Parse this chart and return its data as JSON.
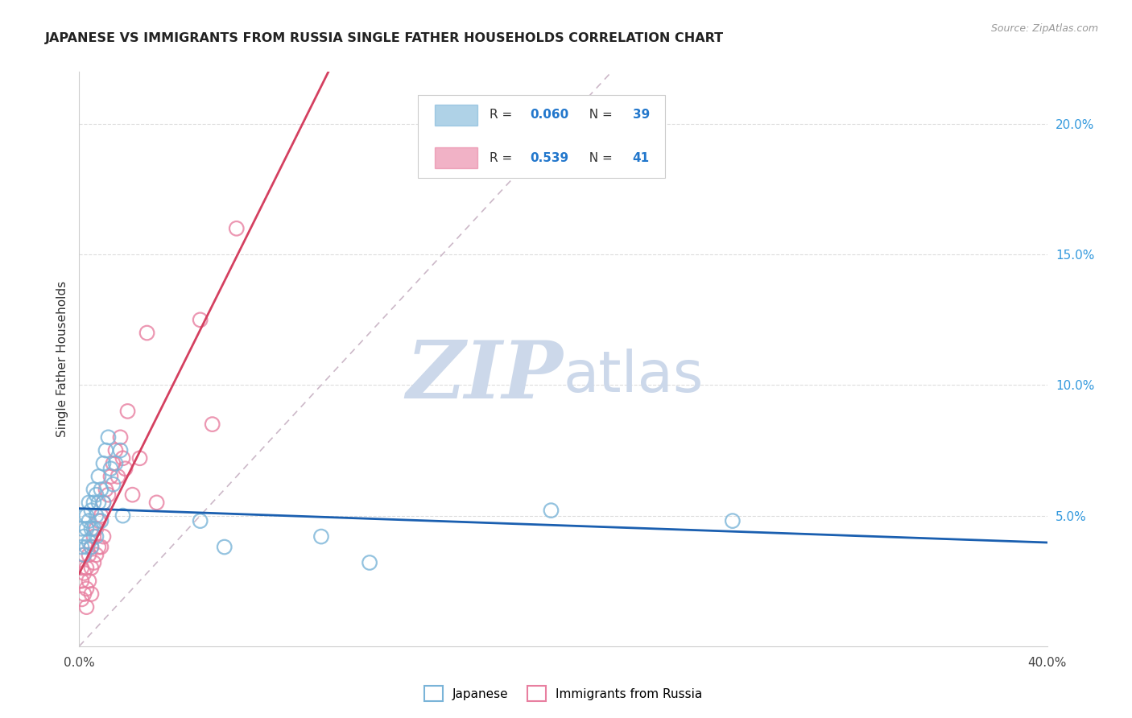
{
  "title": "JAPANESE VS IMMIGRANTS FROM RUSSIA SINGLE FATHER HOUSEHOLDS CORRELATION CHART",
  "source": "Source: ZipAtlas.com",
  "ylabel": "Single Father Households",
  "xlim": [
    0.0,
    0.4
  ],
  "ylim": [
    0.0,
    0.22
  ],
  "r_japanese": 0.06,
  "n_japanese": 39,
  "r_russia": 0.539,
  "n_russia": 41,
  "scatter_color_japanese": "#7ab4d8",
  "scatter_color_russia": "#e87fa0",
  "line_color_japanese": "#1a5fb0",
  "line_color_russia": "#d44060",
  "diagonal_color": "#cccccc",
  "background_color": "#ffffff",
  "watermark_color": "#ccd8ea",
  "japanese_x": [
    0.001,
    0.001,
    0.002,
    0.002,
    0.002,
    0.003,
    0.003,
    0.003,
    0.004,
    0.004,
    0.004,
    0.005,
    0.005,
    0.005,
    0.006,
    0.006,
    0.006,
    0.007,
    0.007,
    0.007,
    0.008,
    0.008,
    0.009,
    0.009,
    0.01,
    0.01,
    0.011,
    0.012,
    0.013,
    0.014,
    0.015,
    0.017,
    0.018,
    0.05,
    0.06,
    0.1,
    0.12,
    0.195,
    0.27
  ],
  "japanese_y": [
    0.045,
    0.038,
    0.05,
    0.042,
    0.035,
    0.05,
    0.045,
    0.038,
    0.055,
    0.048,
    0.04,
    0.052,
    0.045,
    0.038,
    0.06,
    0.055,
    0.045,
    0.058,
    0.05,
    0.042,
    0.065,
    0.055,
    0.06,
    0.048,
    0.07,
    0.055,
    0.075,
    0.08,
    0.068,
    0.062,
    0.07,
    0.075,
    0.05,
    0.048,
    0.038,
    0.042,
    0.032,
    0.052,
    0.048
  ],
  "russia_x": [
    0.001,
    0.001,
    0.001,
    0.002,
    0.002,
    0.002,
    0.003,
    0.003,
    0.003,
    0.004,
    0.004,
    0.005,
    0.005,
    0.005,
    0.006,
    0.006,
    0.007,
    0.007,
    0.008,
    0.008,
    0.009,
    0.009,
    0.01,
    0.01,
    0.011,
    0.012,
    0.013,
    0.014,
    0.015,
    0.016,
    0.017,
    0.018,
    0.019,
    0.02,
    0.022,
    0.025,
    0.028,
    0.032,
    0.05,
    0.055,
    0.065
  ],
  "russia_y": [
    0.03,
    0.025,
    0.018,
    0.035,
    0.028,
    0.02,
    0.03,
    0.022,
    0.015,
    0.035,
    0.025,
    0.038,
    0.03,
    0.02,
    0.042,
    0.032,
    0.045,
    0.035,
    0.048,
    0.038,
    0.05,
    0.038,
    0.055,
    0.042,
    0.06,
    0.058,
    0.065,
    0.07,
    0.075,
    0.065,
    0.08,
    0.072,
    0.068,
    0.09,
    0.058,
    0.072,
    0.12,
    0.055,
    0.125,
    0.085,
    0.16
  ],
  "diag_line_color": "#ccb8c8"
}
